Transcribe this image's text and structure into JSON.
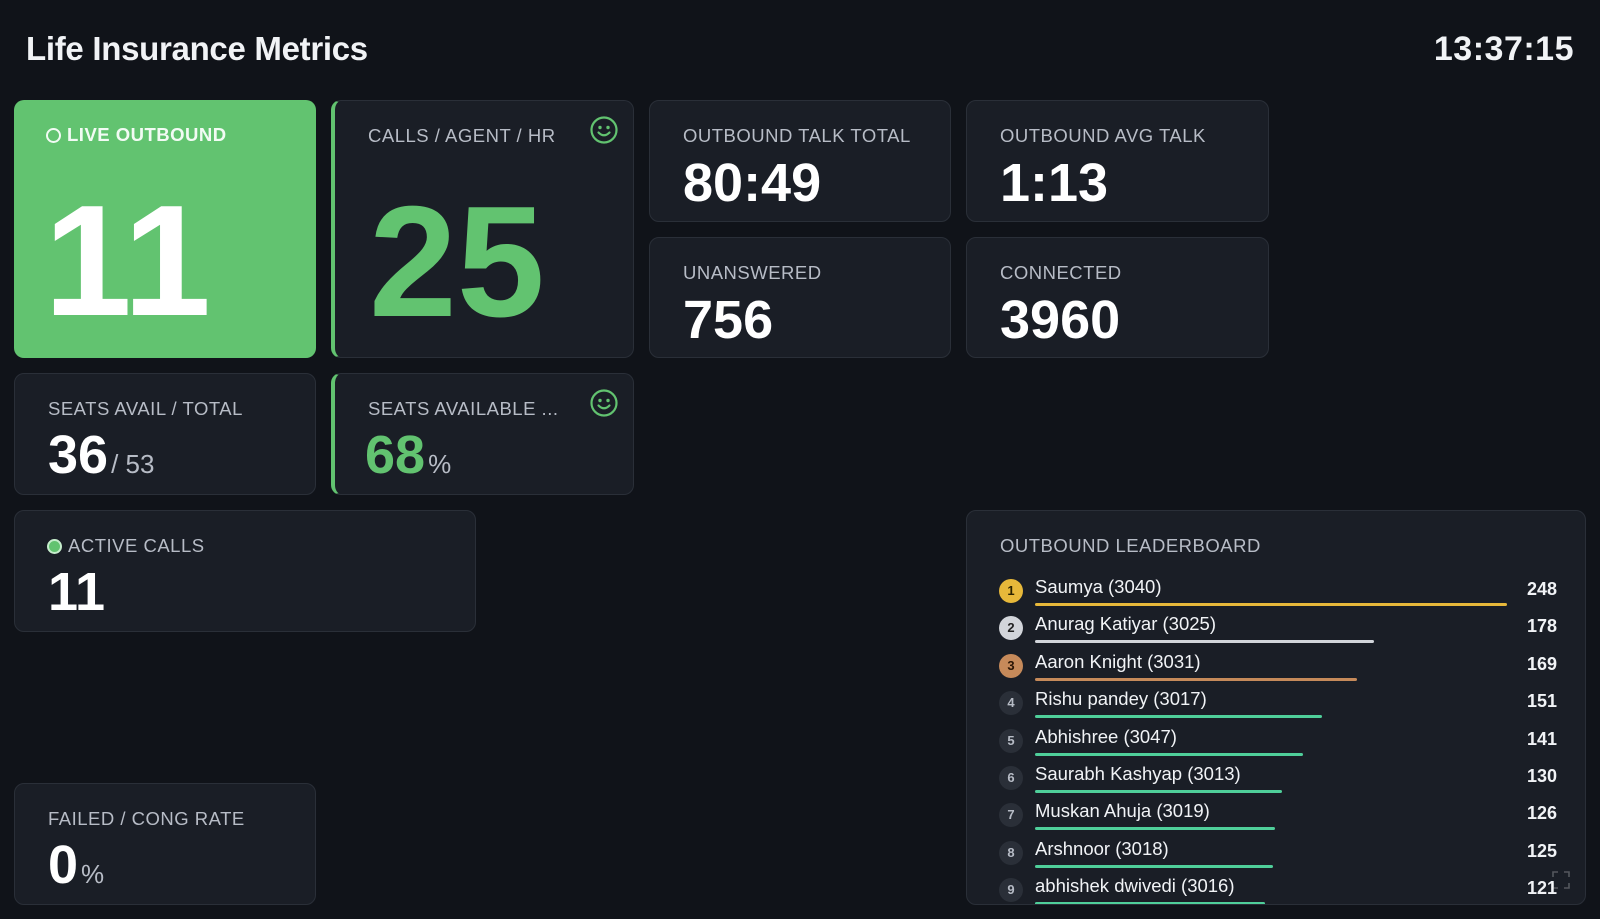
{
  "header": {
    "title": "Life Insurance Metrics",
    "clock": "13:37:15"
  },
  "colors": {
    "accent": "#62c370",
    "background": "#101319",
    "card": "#1a1e26",
    "gold": "#e7b83a",
    "silver": "#d2d5da",
    "bronze": "#c68a5a",
    "bar": "#4fcf9a"
  },
  "cards": {
    "live_outbound": {
      "label": "LIVE OUTBOUND",
      "value": "11"
    },
    "calls_per_agent": {
      "label": "CALLS / AGENT / HR",
      "value": "25",
      "icon": "smile-icon"
    },
    "outbound_talk_total": {
      "label": "OUTBOUND TALK TOTAL",
      "value": "80:49"
    },
    "outbound_avg_talk": {
      "label": "OUTBOUND AVG TALK",
      "value": "1:13"
    },
    "unanswered": {
      "label": "UNANSWERED",
      "value": "756"
    },
    "connected": {
      "label": "CONNECTED",
      "value": "3960"
    },
    "seats_avail_total": {
      "label": "SEATS AVAIL / TOTAL",
      "value": "36",
      "suffix": "/ 53"
    },
    "seats_available_pct": {
      "label": "SEATS AVAILABLE ...",
      "value": "68",
      "suffix": "%",
      "icon": "smile-icon"
    },
    "active_calls": {
      "label": "ACTIVE CALLS",
      "value": "11"
    },
    "failed_cong_rate": {
      "label": "FAILED / CONG RATE",
      "value": "0",
      "suffix": "%"
    }
  },
  "leaderboard": {
    "title": "OUTBOUND LEADERBOARD",
    "max": 248,
    "entries": [
      {
        "rank": "1",
        "name": "Saumya (3040)",
        "count": 248
      },
      {
        "rank": "2",
        "name": "Anurag Katiyar (3025)",
        "count": 178
      },
      {
        "rank": "3",
        "name": "Aaron Knight (3031)",
        "count": 169
      },
      {
        "rank": "4",
        "name": "Rishu pandey (3017)",
        "count": 151
      },
      {
        "rank": "5",
        "name": "Abhishree (3047)",
        "count": 141
      },
      {
        "rank": "6",
        "name": "Saurabh Kashyap (3013)",
        "count": 130
      },
      {
        "rank": "7",
        "name": "Muskan Ahuja (3019)",
        "count": 126
      },
      {
        "rank": "8",
        "name": "Arshnoor (3018)",
        "count": 125
      },
      {
        "rank": "9",
        "name": "abhishek dwivedi (3016)",
        "count": 121
      }
    ]
  }
}
